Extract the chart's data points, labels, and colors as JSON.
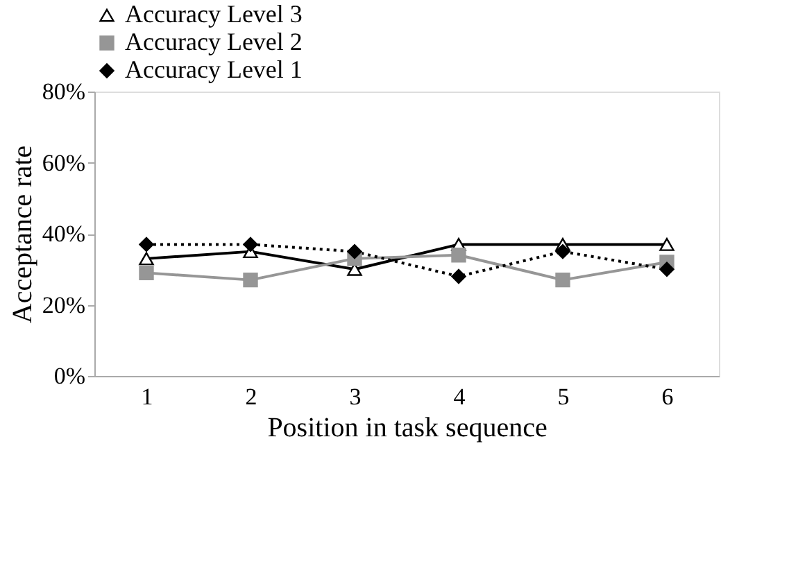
{
  "chart_data": {
    "type": "line",
    "xlabel": "Position in task sequence",
    "ylabel": "Acceptance rate",
    "categories": [
      "1",
      "2",
      "3",
      "4",
      "5",
      "6"
    ],
    "ylim": [
      0,
      0.8
    ],
    "yticks": [
      {
        "value": 0,
        "label": "0%"
      },
      {
        "value": 0.2,
        "label": "20%"
      },
      {
        "value": 0.4,
        "label": "40%"
      },
      {
        "value": 0.6,
        "label": "60%"
      },
      {
        "value": 0.8,
        "label": "80%"
      }
    ],
    "grid": false,
    "legend": "top",
    "series": [
      {
        "name": "Accuracy Level 3",
        "color": "#000000",
        "marker": "triangle",
        "line_style": "solid",
        "values": [
          0.33,
          0.35,
          0.3,
          0.37,
          0.37,
          0.37
        ]
      },
      {
        "name": "Accuracy Level 2",
        "color": "#969696",
        "marker": "square",
        "line_style": "solid",
        "values": [
          0.29,
          0.27,
          0.33,
          0.34,
          0.27,
          0.32
        ]
      },
      {
        "name": "Accuracy Level 1",
        "color": "#000000",
        "marker": "diamond",
        "line_style": "dotted",
        "values": [
          0.37,
          0.37,
          0.35,
          0.28,
          0.35,
          0.3
        ]
      }
    ]
  }
}
